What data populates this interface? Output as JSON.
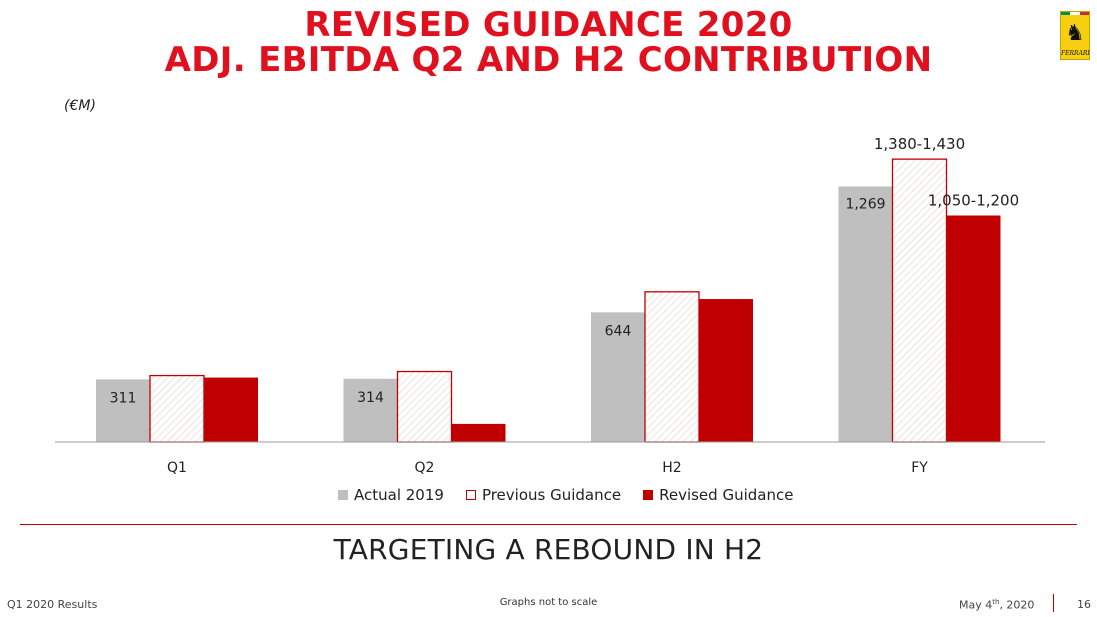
{
  "header": {
    "title_line1": "REVISED GUIDANCE 2020",
    "title_line2": "ADJ. EBITDA Q2 AND H2 CONTRIBUTION",
    "logo_text": "FERRARI",
    "logo_icon": "prancing-horse-icon"
  },
  "chart_data": {
    "type": "bar",
    "unit_label": "(€M)",
    "categories": [
      "Q1",
      "Q2",
      "H2",
      "FY"
    ],
    "series": [
      {
        "name": "Actual 2019",
        "values": [
          311,
          314,
          644,
          1269
        ],
        "labels": [
          "311",
          "314",
          "644",
          "1,269"
        ],
        "color": "#bfbfbf"
      },
      {
        "name": "Previous Guidance",
        "values": [
          330,
          350,
          746,
          1405
        ],
        "labels": [
          "",
          "",
          "",
          "1,380-1,430"
        ],
        "color": "#c00000"
      },
      {
        "name": "Revised Guidance",
        "values": [
          320,
          90,
          710,
          1125
        ],
        "labels": [
          "",
          "",
          "",
          "1,050-1,200"
        ],
        "color": "#c00000"
      }
    ],
    "ylim": [
      0,
      1500
    ],
    "legend": "bottom",
    "grid": false,
    "note": "Graphs not to scale"
  },
  "subtitle": "TARGETING A REBOUND IN H2",
  "footer": {
    "left": "Q1 2020 Results",
    "center": "Graphs not to scale",
    "date_main": "May 4",
    "date_sup": "th",
    "date_year": ", 2020",
    "page": "16"
  }
}
